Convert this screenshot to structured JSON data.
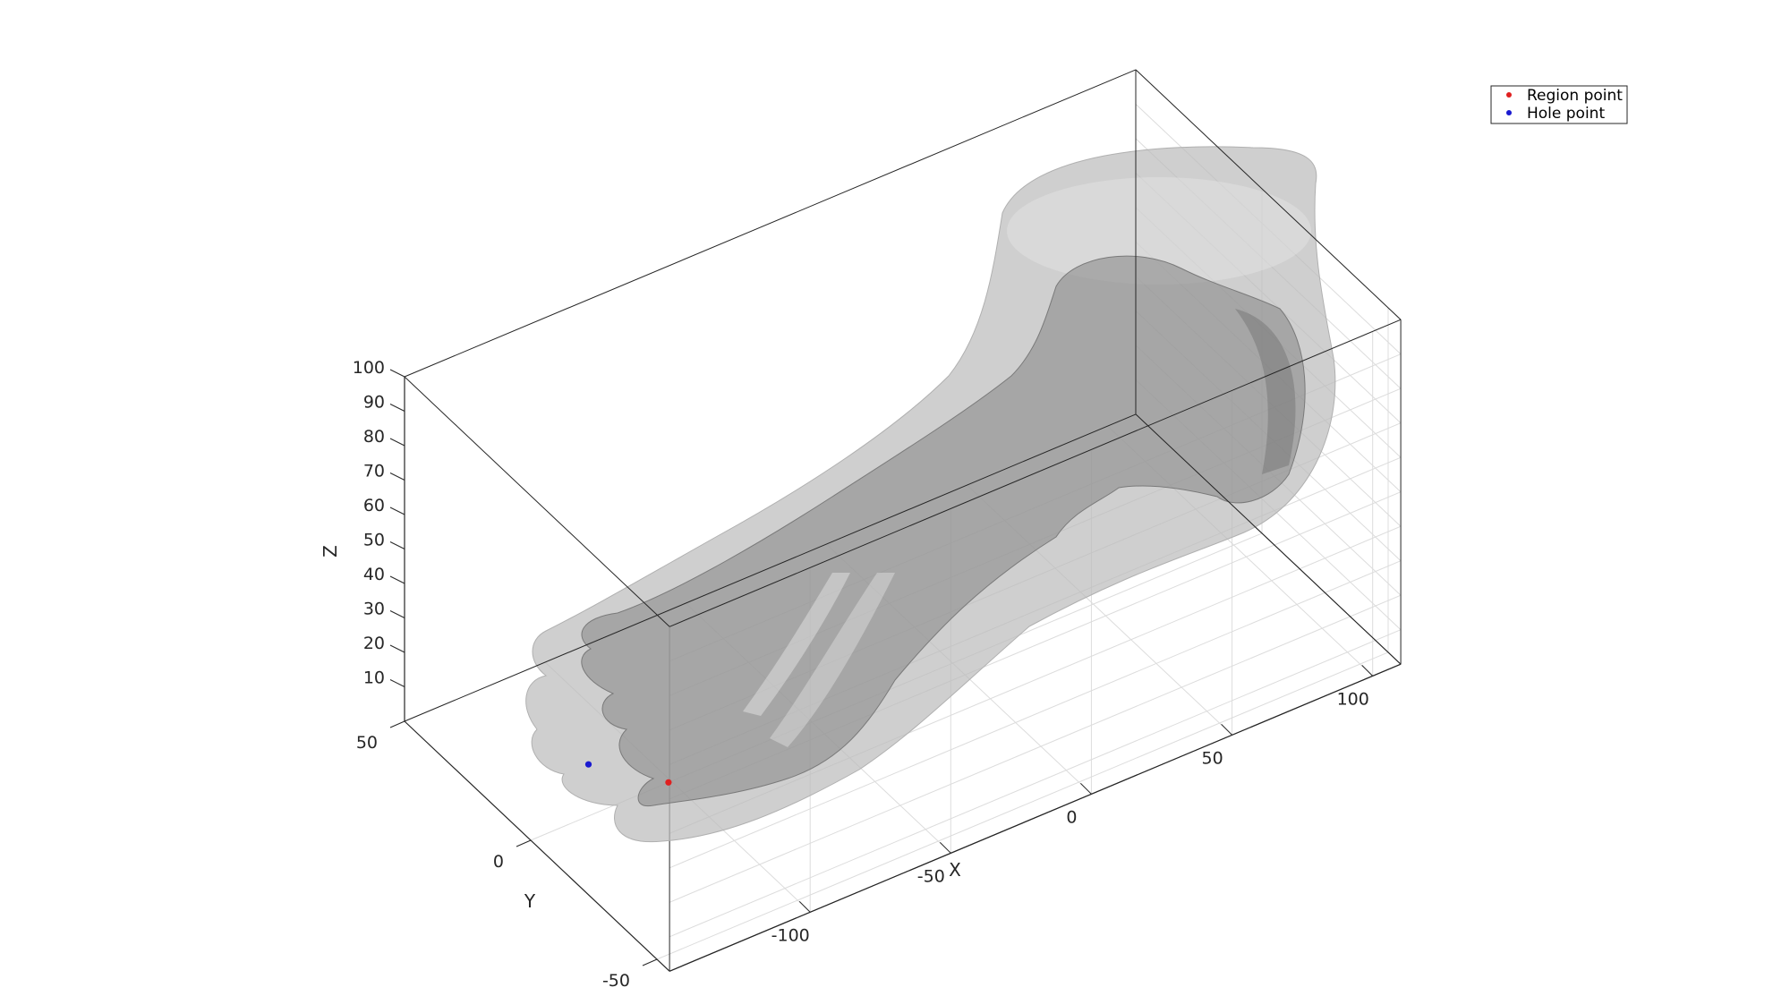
{
  "chart_data": {
    "type": "scatter",
    "title": "",
    "xlabel": "X",
    "ylabel": "Y",
    "zlabel": "Z",
    "xticks": [
      -100,
      -50,
      0,
      50,
      100
    ],
    "xtick_labels": [
      "-100",
      "-50",
      "0",
      "50",
      "100"
    ],
    "yticks": [
      -50,
      0,
      50
    ],
    "ytick_labels": [
      "-50",
      "0",
      "50"
    ],
    "zticks": [
      10,
      20,
      30,
      40,
      50,
      60,
      70,
      80,
      90,
      100
    ],
    "ztick_labels": [
      "10",
      "20",
      "30",
      "40",
      "50",
      "60",
      "70",
      "80",
      "90",
      "100"
    ],
    "xlim": [
      -150,
      110
    ],
    "ylim": [
      -55,
      50
    ],
    "zlim": [
      0,
      100
    ],
    "grid": true,
    "legend_position": "top-right",
    "series": [
      {
        "name": "Region point",
        "color": "#e02020",
        "points": [
          {
            "x": -110,
            "y": -10,
            "z": 10
          }
        ]
      },
      {
        "name": "Hole point",
        "color": "#1a1ad0",
        "points": [
          {
            "x": -125,
            "y": 5,
            "z": 10
          }
        ]
      }
    ],
    "surfaces": [
      {
        "name": "skin",
        "color": "#b8b8b8"
      },
      {
        "name": "bones",
        "color": "#8a8a8a"
      }
    ]
  }
}
